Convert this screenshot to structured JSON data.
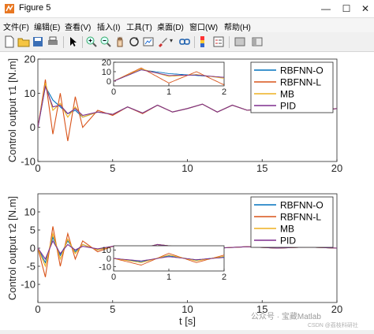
{
  "window": {
    "title": "Figure 5"
  },
  "menu": [
    "文件(F)",
    "编辑(E)",
    "查看(V)",
    "插入(I)",
    "工具(T)",
    "桌面(D)",
    "窗口(W)",
    "帮助(H)"
  ],
  "toolbar_icons": [
    "new-file-icon",
    "open-folder-icon",
    "save-icon",
    "print-icon",
    "pointer-icon",
    "zoom-in-icon",
    "zoom-out-icon",
    "pan-icon",
    "rotate-icon",
    "data-cursor-icon",
    "brush-icon",
    "link-icon",
    "colorbar-icon",
    "legend-icon",
    "hide-plot-tools-icon",
    "show-plot-tools-icon"
  ],
  "colors": {
    "RBFNN-O": "#0072bd",
    "RBFNN-L": "#d95319",
    "MB": "#edb120",
    "PID": "#7e2f8e"
  },
  "watermark": {
    "line1": "公众号 · 宝藏Matlab",
    "line2": "CSDN @荔枝科研社"
  },
  "chart_data": [
    {
      "type": "line",
      "ylabel": "Control output τ1 [N.m]",
      "xlabel": "",
      "xlim": [
        0,
        20
      ],
      "ylim": [
        -10,
        20
      ],
      "xticks": [
        0,
        5,
        10,
        15,
        20
      ],
      "yticks": [
        -10,
        0,
        10,
        20
      ],
      "legend": [
        "RBFNN-O",
        "RBFNN-L",
        "MB",
        "PID"
      ],
      "legend_position": "top-right",
      "inset": {
        "xlim": [
          0,
          2
        ],
        "ylim": [
          -5,
          20
        ],
        "xticks": [
          0,
          1,
          2
        ],
        "yticks": [
          0,
          10,
          20
        ],
        "position": "top-center"
      },
      "series": [
        {
          "name": "RBFNN-O",
          "x": [
            0,
            0.5,
            1,
            1.5,
            2,
            2.5,
            3,
            4,
            5,
            6,
            7,
            8,
            9,
            10,
            11,
            12,
            13,
            14,
            15,
            16,
            17,
            18,
            19,
            20
          ],
          "y": [
            0,
            12,
            8,
            6,
            4,
            5,
            3,
            4.5,
            3.8,
            6,
            4.2,
            6.5,
            4.5,
            5.5,
            6.8,
            4.5,
            6.5,
            5,
            5.5,
            6.5,
            4.8,
            6.5,
            5,
            5.5
          ]
        },
        {
          "name": "RBFNN-L",
          "x": [
            0,
            0.5,
            1,
            1.5,
            2,
            2.5,
            3,
            4,
            5,
            6,
            7,
            8,
            9,
            10,
            11,
            12,
            13,
            14,
            15,
            16,
            17,
            18,
            19,
            20
          ],
          "y": [
            0,
            14,
            -2,
            10,
            -4,
            9,
            0,
            5,
            3.5,
            6,
            4,
            6.5,
            4.5,
            5.5,
            6.8,
            4.5,
            6.5,
            5,
            5.5,
            6.5,
            4.8,
            6.5,
            5,
            5.5
          ]
        },
        {
          "name": "MB",
          "x": [
            0,
            0.5,
            1,
            1.5,
            2,
            2.5,
            3,
            4,
            5,
            6,
            7,
            8,
            9,
            10,
            11,
            12,
            13,
            14,
            15,
            16,
            17,
            18,
            19,
            20
          ],
          "y": [
            0,
            13,
            5,
            7,
            3,
            6,
            3,
            4.5,
            3.8,
            6,
            4.2,
            6.5,
            4.5,
            5.5,
            6.8,
            4.5,
            6.5,
            5,
            5.5,
            6.5,
            4.8,
            6.5,
            5,
            5.5
          ]
        },
        {
          "name": "PID",
          "x": [
            0,
            0.5,
            1,
            1.5,
            2,
            2.5,
            3,
            4,
            5,
            6,
            7,
            8,
            9,
            10,
            11,
            12,
            13,
            14,
            15,
            16,
            17,
            18,
            19,
            20
          ],
          "y": [
            0,
            12,
            6,
            6.5,
            4,
            5.5,
            3.5,
            4.5,
            3.8,
            6,
            4.2,
            6.5,
            4.5,
            5.5,
            6.8,
            4.5,
            6.5,
            5,
            5.5,
            6.5,
            4.8,
            6.5,
            5,
            5.5
          ]
        }
      ]
    },
    {
      "type": "line",
      "ylabel": "Control output τ2 [N.m]",
      "xlabel": "t [s]",
      "xlim": [
        0,
        20
      ],
      "ylim": [
        -15,
        15
      ],
      "xticks": [
        0,
        5,
        10,
        15,
        20
      ],
      "yticks": [
        -10,
        -5,
        0,
        5,
        10
      ],
      "legend": [
        "RBFNN-O",
        "RBFNN-L",
        "MB",
        "PID"
      ],
      "legend_position": "top-right",
      "inset": {
        "xlim": [
          0,
          2
        ],
        "ylim": [
          -15,
          15
        ],
        "xticks": [
          0,
          1,
          2
        ],
        "yticks": [
          -10,
          0,
          10
        ],
        "position": "bottom-center"
      },
      "series": [
        {
          "name": "RBFNN-O",
          "x": [
            0,
            0.5,
            1,
            1.5,
            2,
            2.5,
            3,
            4,
            5,
            6,
            7,
            8,
            9,
            10,
            12,
            14,
            16,
            18,
            20
          ],
          "y": [
            0,
            -4,
            3,
            -2,
            2,
            -1,
            1,
            -0.5,
            0.5,
            0.3,
            0,
            1,
            0.5,
            0.2,
            0,
            0.4,
            0,
            0.3,
            0
          ]
        },
        {
          "name": "RBFNN-L",
          "x": [
            0,
            0.5,
            1,
            1.5,
            2,
            2.5,
            3,
            4,
            5,
            6,
            7,
            8,
            9,
            10,
            12,
            14,
            16,
            18,
            20
          ],
          "y": [
            0,
            -8,
            6,
            -5,
            4,
            -3,
            2,
            -1,
            0.5,
            0.3,
            0,
            1,
            0.5,
            0.2,
            0,
            0.4,
            0,
            0.3,
            0
          ]
        },
        {
          "name": "MB",
          "x": [
            0,
            0.5,
            1,
            1.5,
            2,
            2.5,
            3,
            4,
            5,
            6,
            7,
            8,
            9,
            10,
            12,
            14,
            16,
            18,
            20
          ],
          "y": [
            0,
            -5,
            4,
            -3,
            2.5,
            -1.5,
            1,
            -0.5,
            0.5,
            0.3,
            0,
            1,
            0.5,
            0.2,
            0,
            0.4,
            0,
            0.3,
            0
          ]
        },
        {
          "name": "PID",
          "x": [
            0,
            0.5,
            1,
            1.5,
            2,
            2.5,
            3,
            4,
            5,
            6,
            7,
            8,
            9,
            10,
            12,
            14,
            16,
            18,
            20
          ],
          "y": [
            0,
            -3,
            2,
            -1.5,
            1,
            -0.5,
            0.5,
            -0.2,
            0.5,
            0.3,
            0,
            1,
            0.5,
            0.2,
            0,
            0.4,
            0,
            0.3,
            0
          ]
        }
      ]
    }
  ]
}
